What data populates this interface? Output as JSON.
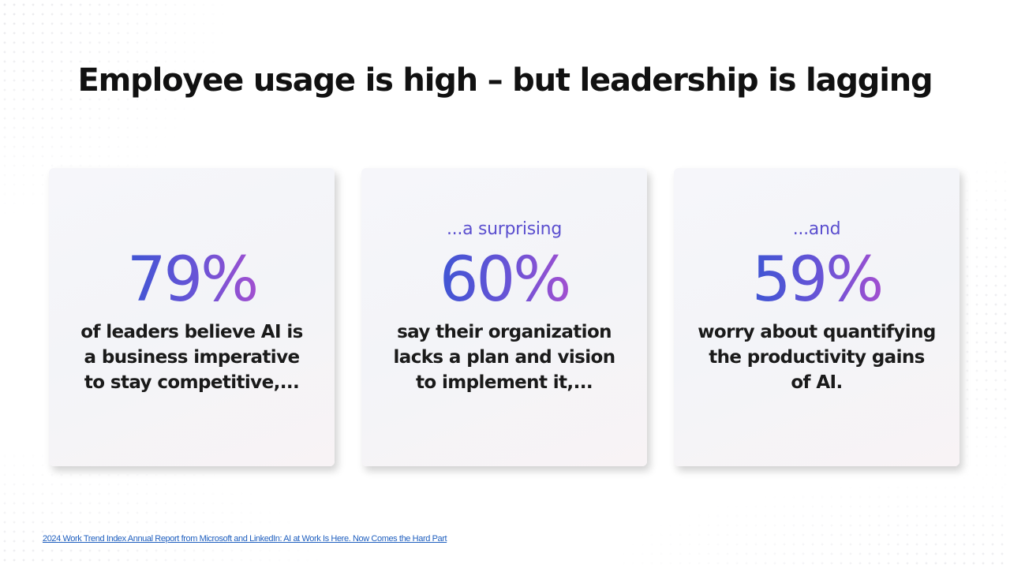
{
  "slide": {
    "title": "Employee usage is high – but leadership is lagging",
    "source_link": "2024 Work Trend Index Annual Report from Microsoft and LinkedIn: AI at Work Is Here. Now Comes the Hard Part"
  },
  "cards": [
    {
      "lead": "",
      "stat": "79%",
      "description": "of leaders believe AI is\na business imperative\nto stay competitive,..."
    },
    {
      "lead": "...a surprising",
      "stat": "60%",
      "description": "say their organization\nlacks a plan and vision\nto implement it,..."
    },
    {
      "lead": "...and",
      "stat": "59%",
      "description": "worry about quantifying\nthe productivity gains\nof AI."
    }
  ],
  "colors": {
    "stat_gradient_start": "#3f55d4",
    "stat_gradient_end": "#a14fd0",
    "lead_text": "#5b4fcf",
    "link": "#1f5fbf"
  }
}
